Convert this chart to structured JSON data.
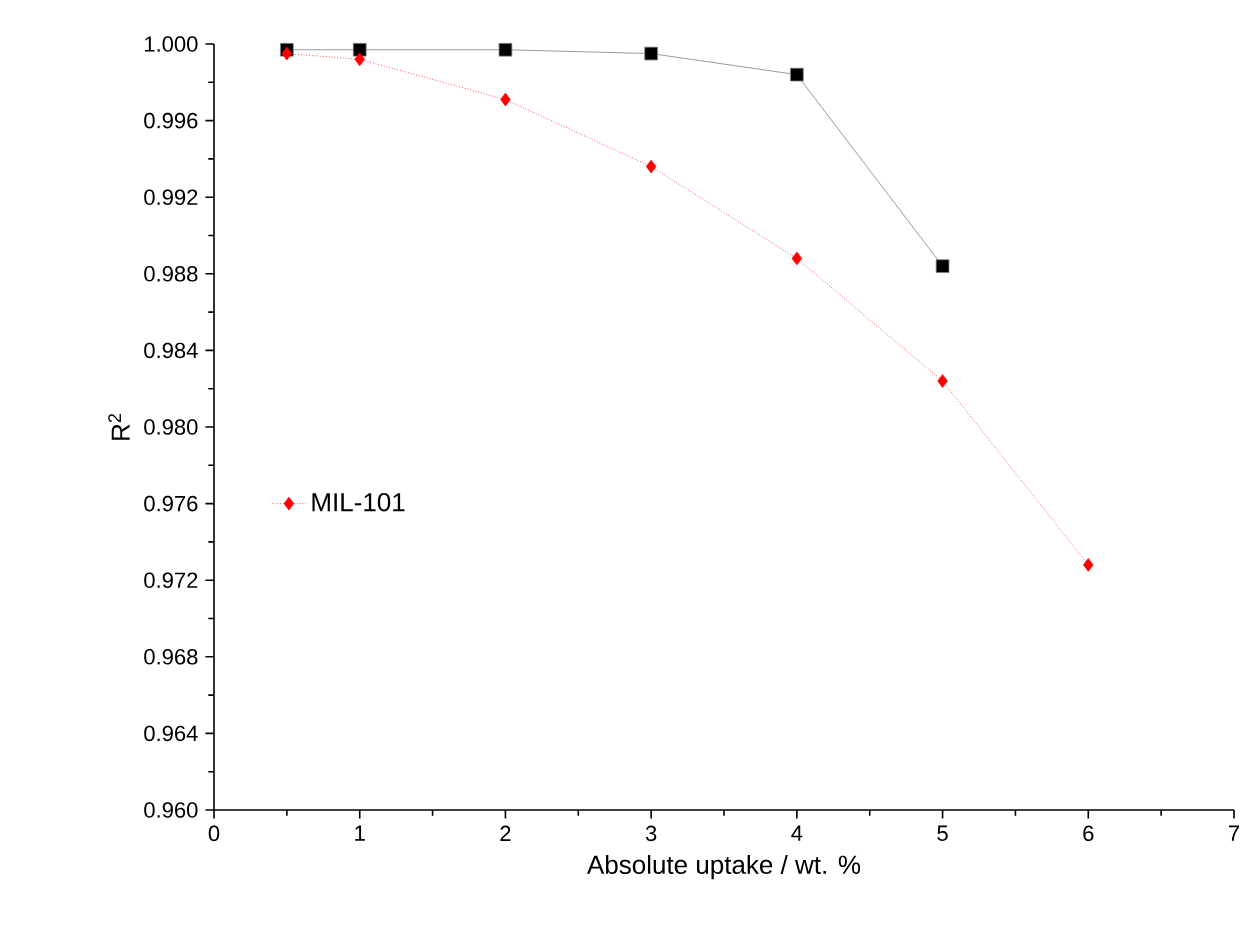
{
  "chart_data": {
    "type": "line",
    "xlabel": "Absolute uptake / wt. %",
    "ylabel": "R$^{2}$",
    "xlim": [
      0,
      7
    ],
    "xticks": [
      0,
      1,
      2,
      3,
      4,
      5,
      6,
      7
    ],
    "ylim": [
      0.96,
      1.0
    ],
    "yticks": [
      {
        "value": 0.96,
        "label": "0.960"
      },
      {
        "value": 0.964,
        "label": "0.964"
      },
      {
        "value": 0.968,
        "label": "0.968"
      },
      {
        "value": 0.972,
        "label": "0.972"
      },
      {
        "value": 0.976,
        "label": "0.976"
      },
      {
        "value": 0.98,
        "label": "0.980"
      },
      {
        "value": 0.984,
        "label": "0.984"
      },
      {
        "value": 0.988,
        "label": "0.988"
      },
      {
        "value": 0.992,
        "label": "0.992"
      },
      {
        "value": 0.996,
        "label": "0.996"
      },
      {
        "value": 1.0,
        "label": "1.000"
      }
    ],
    "legend": "left",
    "grid": false,
    "series": [
      {
        "color": "#000000",
        "marker": "square",
        "line_style": "solid",
        "x": [
          0.5,
          1,
          2,
          3,
          4,
          5
        ],
        "values": [
          0.9997,
          0.9997,
          0.9997,
          0.9995,
          0.9984,
          0.9884
        ]
      },
      {
        "name": "MIL-101",
        "color": "#ff0000",
        "marker": "diamond",
        "line_style": "dotted",
        "x": [
          0.5,
          1,
          2,
          3,
          4,
          5,
          6
        ],
        "values": [
          0.9995,
          0.9992,
          0.9971,
          0.9936,
          0.9888,
          0.9824,
          0.9728
        ]
      }
    ]
  }
}
